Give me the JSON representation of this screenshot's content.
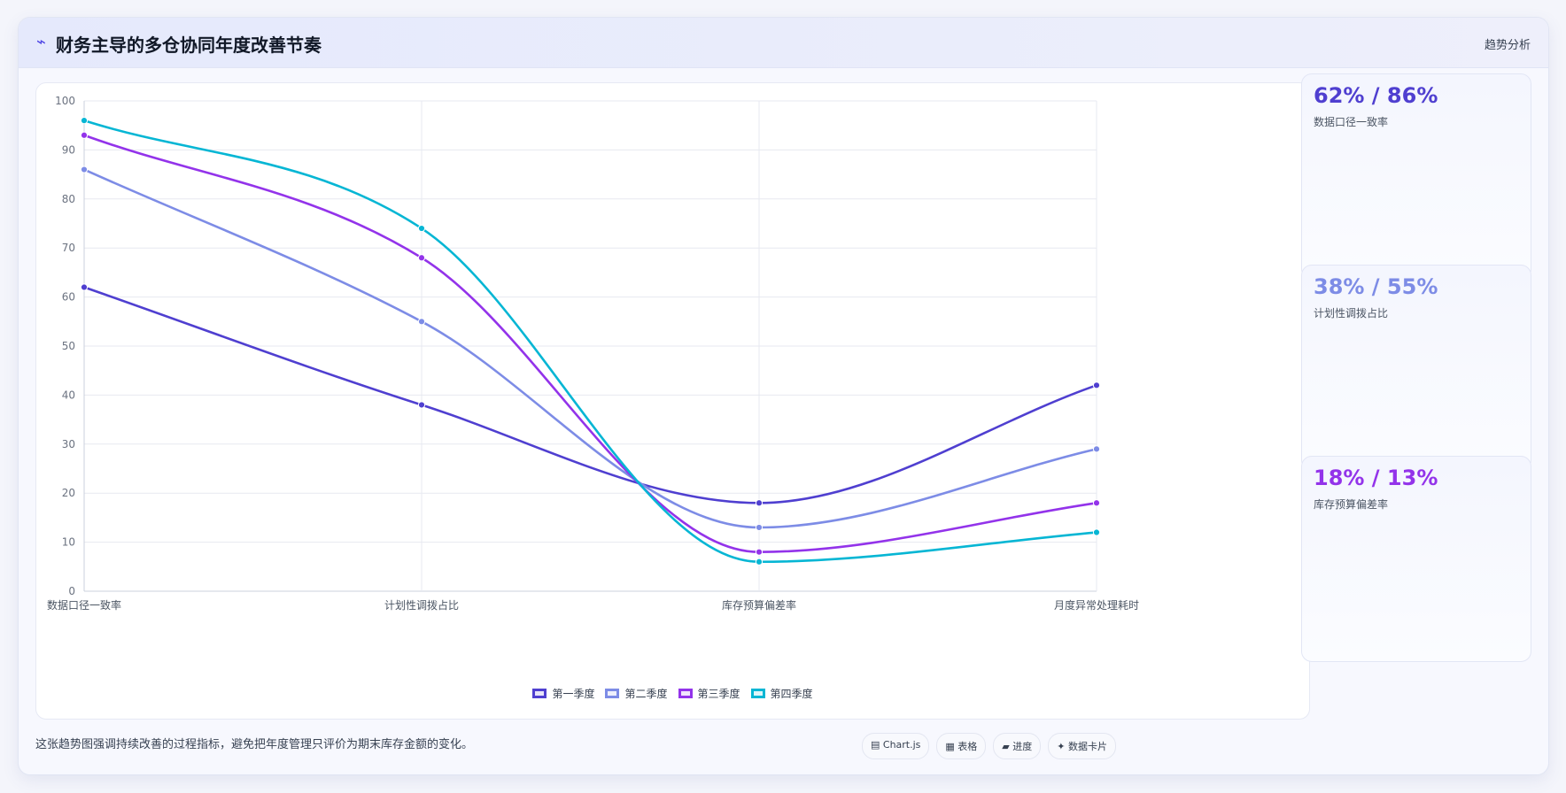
{
  "header": {
    "icon": "⌁",
    "title": "财务主导的多仓协同年度改善节奏",
    "tag": "趋势分析"
  },
  "chart_data": {
    "type": "line",
    "categories": [
      "数据口径一致率",
      "计划性调拨占比",
      "库存预算偏差率",
      "月度异常处理耗时"
    ],
    "ylim": [
      0,
      100
    ],
    "yticks": [
      0,
      10,
      20,
      30,
      40,
      50,
      60,
      70,
      80,
      90,
      100
    ],
    "grid": true,
    "legend_position": "bottom",
    "series": [
      {
        "name": "第一季度",
        "color": "#4f3fd0",
        "values": [
          62,
          38,
          18,
          42
        ]
      },
      {
        "name": "第二季度",
        "color": "#7d8ce6",
        "values": [
          86,
          55,
          13,
          29
        ]
      },
      {
        "name": "第三季度",
        "color": "#9333ea",
        "values": [
          93,
          68,
          8,
          18
        ]
      },
      {
        "name": "第四季度",
        "color": "#06b6d4",
        "values": [
          96,
          74,
          6,
          12
        ]
      }
    ]
  },
  "stats": [
    {
      "value": "62% / 86%",
      "label": "数据口径一致率",
      "color": "#4f3fd0"
    },
    {
      "value": "38% / 55%",
      "label": "计划性调拨占比",
      "color": "#7d8ce6"
    },
    {
      "value": "18% / 13%",
      "label": "库存预算偏差率",
      "color": "#9333ea"
    }
  ],
  "footnote": "这张趋势图强调持续改善的过程指标，避免把年度管理只评价为期末库存金额的变化。",
  "tags": [
    "▤ Chart.js",
    "▦ 表格",
    "▰ 进度",
    "✦ 数据卡片"
  ]
}
